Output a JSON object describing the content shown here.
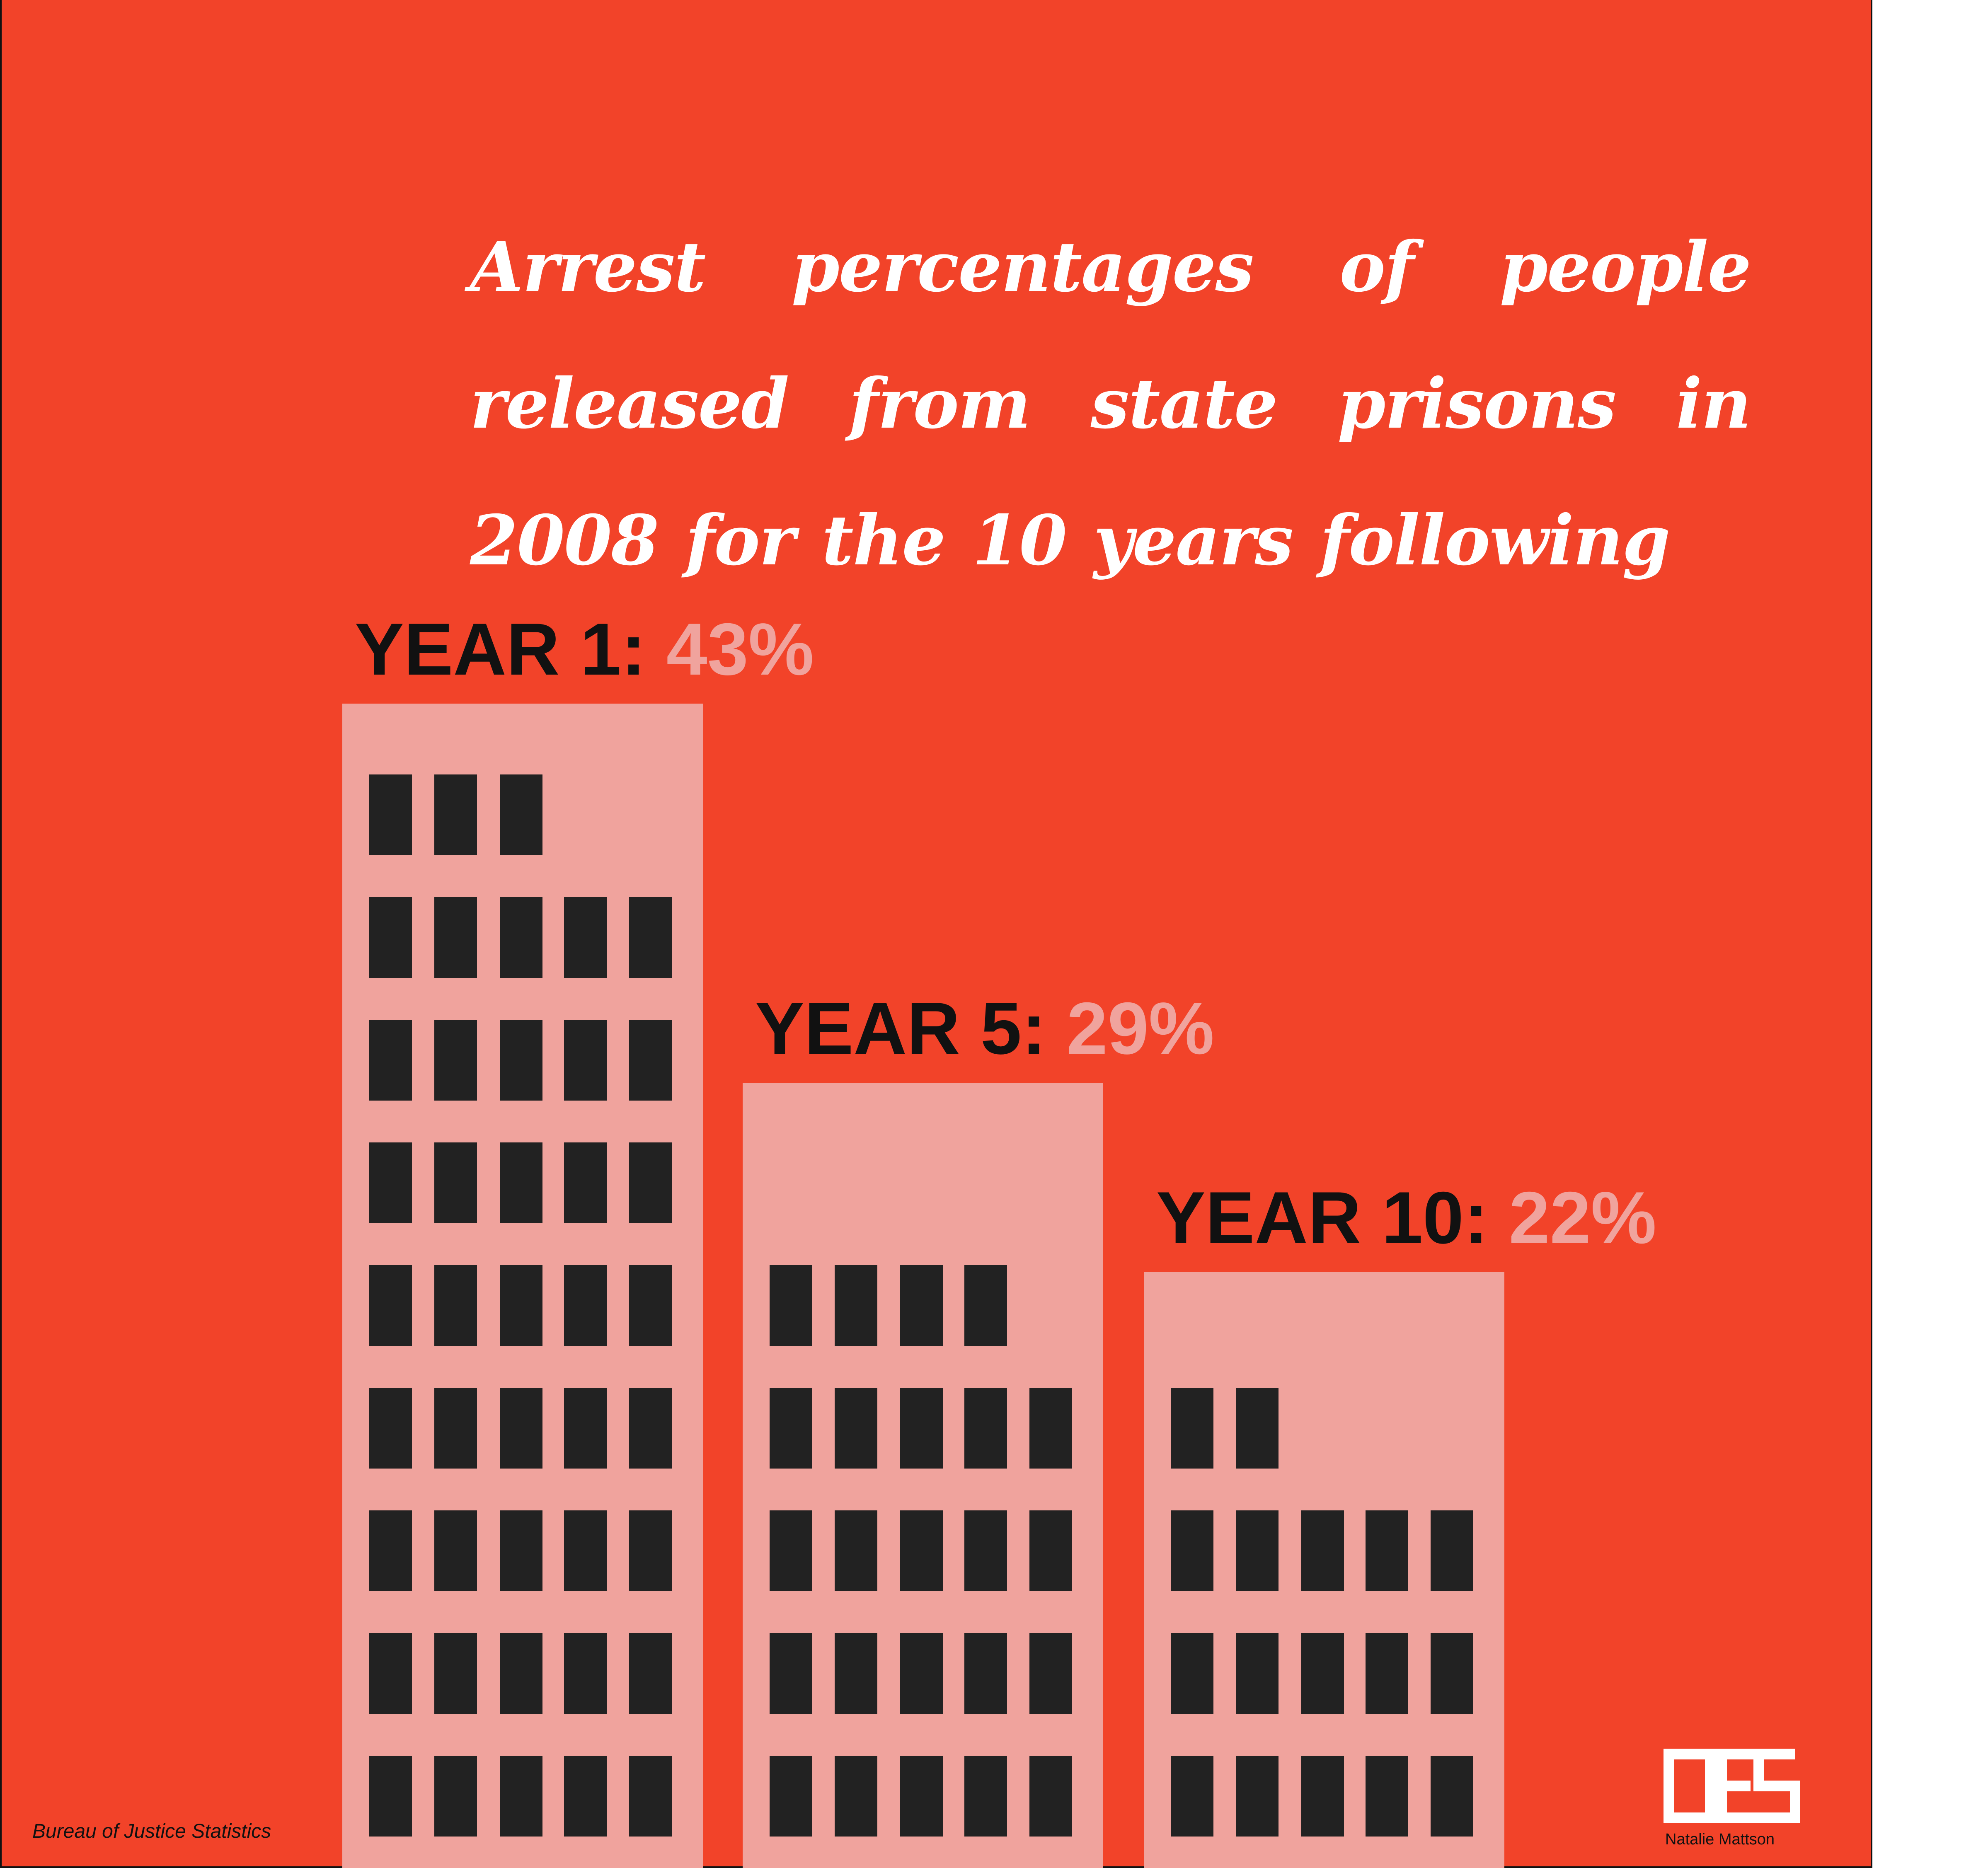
{
  "colors": {
    "background": "#f24329",
    "building": "#f0a39d",
    "window": "#222222",
    "title_text": "#ffffff",
    "label_text": "#111111",
    "value_text": "#f0a39d",
    "logo": "#ffffff"
  },
  "title": "Arrest percentages of people released from state prisons in 2008 for the 10 years following",
  "chart_data": {
    "type": "bar",
    "title": "Arrest percentages of people released from state prisons in 2008 for the 10 years following",
    "categories": [
      "YEAR 1:",
      "YEAR 5:",
      "YEAR 10:"
    ],
    "values": [
      43,
      29,
      22
    ],
    "value_labels": [
      "43%",
      "29%",
      "22%"
    ],
    "unit": "%",
    "xlabel": "",
    "ylabel": "",
    "ylim": [
      0,
      43
    ],
    "grid": false,
    "legend": "none"
  },
  "footer": {
    "source": "Bureau of Justice Statistics",
    "credit": "Natalie Mattson",
    "logo_icon": "oes-logo-icon"
  }
}
